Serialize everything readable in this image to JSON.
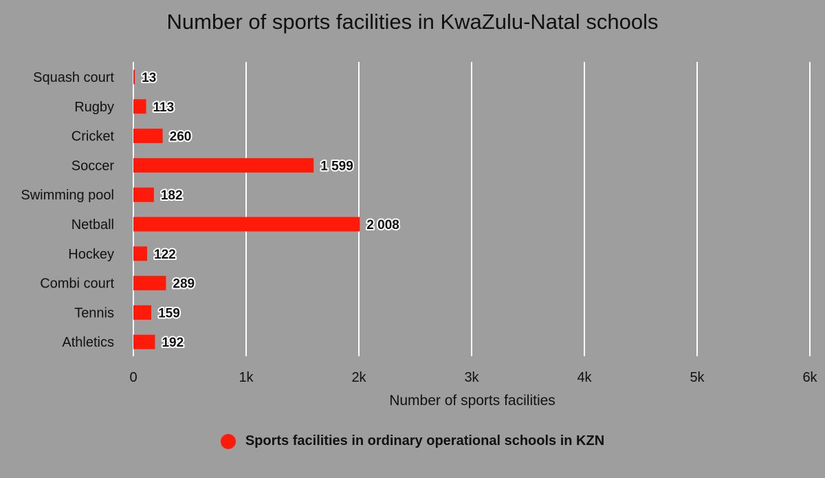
{
  "chart_data": {
    "type": "bar",
    "orientation": "horizontal",
    "title": "Number of sports facilities in KwaZulu-Natal schools",
    "xlabel": "Number of sports facilities",
    "ylabel": "",
    "categories": [
      "Squash court",
      "Rugby",
      "Cricket",
      "Soccer",
      "Swimming pool",
      "Netball",
      "Hockey",
      "Combi court",
      "Tennis",
      "Athletics"
    ],
    "series": [
      {
        "name": "Sports facilities in ordinary operational schools in KZN",
        "values": [
          13,
          113,
          260,
          1599,
          182,
          2008,
          122,
          289,
          159,
          192
        ],
        "labels": [
          "13",
          "113",
          "260",
          "1 599",
          "182",
          "2 008",
          "122",
          "289",
          "159",
          "192"
        ],
        "color": "#ff1a0a"
      }
    ],
    "xlim": [
      0,
      6000
    ],
    "xticks": [
      0,
      1000,
      2000,
      3000,
      4000,
      5000,
      6000
    ],
    "xtick_labels": [
      "0",
      "1k",
      "2k",
      "3k",
      "4k",
      "5k",
      "6k"
    ],
    "grid": true,
    "grid_color": "#ffffff",
    "background": "#9e9e9e",
    "legend_position": "bottom-center"
  }
}
